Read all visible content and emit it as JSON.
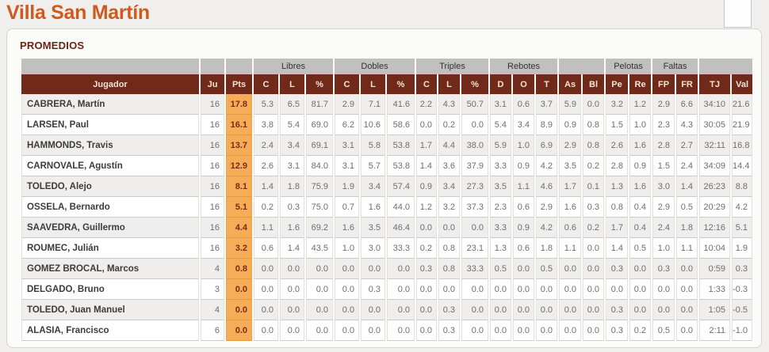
{
  "page": {
    "title": "Villa San Martín"
  },
  "panel": {
    "heading": "PROMEDIOS"
  },
  "colors": {
    "title_orange": "#cf5a1e",
    "heading_maroon": "#6b2415",
    "header_bg": "#71291a",
    "group_header_bg": "#c2c0be",
    "pts_highlight_bg": "#f7ad57",
    "row_stripe": "#efeeec"
  },
  "table": {
    "groups": [
      {
        "label": "",
        "span": 1
      },
      {
        "label": "",
        "span": 1
      },
      {
        "label": "",
        "span": 1
      },
      {
        "label": "Libres",
        "span": 3
      },
      {
        "label": "Dobles",
        "span": 3
      },
      {
        "label": "Triples",
        "span": 3
      },
      {
        "label": "Rebotes",
        "span": 3
      },
      {
        "label": "",
        "span": 2
      },
      {
        "label": "Pelotas",
        "span": 2
      },
      {
        "label": "Faltas",
        "span": 2
      },
      {
        "label": "",
        "span": 2
      }
    ],
    "columns": [
      "Jugador",
      "Ju",
      "Pts",
      "C",
      "L",
      "%",
      "C",
      "L",
      "%",
      "C",
      "L",
      "%",
      "D",
      "O",
      "T",
      "As",
      "Bl",
      "Pe",
      "Re",
      "FP",
      "FR",
      "TJ",
      "Val"
    ],
    "rows": [
      {
        "name": "CABRERA, Martín",
        "values": [
          "16",
          "17.8",
          "5.3",
          "6.5",
          "81.7",
          "2.9",
          "7.1",
          "41.6",
          "2.2",
          "4.3",
          "50.7",
          "3.1",
          "0.6",
          "3.7",
          "5.9",
          "0.0",
          "3.2",
          "1.2",
          "2.9",
          "6.6",
          "34:10",
          "21.6"
        ]
      },
      {
        "name": "LARSEN, Paul",
        "values": [
          "16",
          "16.1",
          "3.8",
          "5.4",
          "69.0",
          "6.2",
          "10.6",
          "58.6",
          "0.0",
          "0.2",
          "0.0",
          "5.4",
          "3.4",
          "8.9",
          "0.9",
          "0.8",
          "1.5",
          "1.0",
          "2.3",
          "4.3",
          "30:05",
          "21.9"
        ]
      },
      {
        "name": "HAMMONDS, Travis",
        "values": [
          "16",
          "13.7",
          "2.4",
          "3.4",
          "69.1",
          "3.1",
          "5.8",
          "53.8",
          "1.7",
          "4.4",
          "38.0",
          "5.9",
          "1.0",
          "6.9",
          "2.9",
          "0.8",
          "2.6",
          "1.6",
          "2.8",
          "2.7",
          "32:11",
          "16.8"
        ]
      },
      {
        "name": "CARNOVALE, Agustín",
        "values": [
          "16",
          "12.9",
          "2.6",
          "3.1",
          "84.0",
          "3.1",
          "5.7",
          "53.8",
          "1.4",
          "3.6",
          "37.9",
          "3.3",
          "0.9",
          "4.2",
          "3.5",
          "0.2",
          "2.8",
          "0.9",
          "1.5",
          "2.4",
          "34:09",
          "14.4"
        ]
      },
      {
        "name": "TOLEDO, Alejo",
        "values": [
          "16",
          "8.1",
          "1.4",
          "1.8",
          "75.9",
          "1.9",
          "3.4",
          "57.4",
          "0.9",
          "3.4",
          "27.3",
          "3.5",
          "1.1",
          "4.6",
          "1.7",
          "0.1",
          "1.3",
          "1.6",
          "3.0",
          "1.4",
          "26:23",
          "8.8"
        ]
      },
      {
        "name": "OSSELA, Bernardo",
        "values": [
          "16",
          "5.1",
          "0.2",
          "0.3",
          "75.0",
          "0.7",
          "1.6",
          "44.0",
          "1.2",
          "3.2",
          "37.3",
          "2.3",
          "0.6",
          "2.9",
          "1.6",
          "0.3",
          "0.8",
          "0.4",
          "2.9",
          "0.5",
          "20:29",
          "4.2"
        ]
      },
      {
        "name": "SAAVEDRA, Guillermo",
        "values": [
          "16",
          "4.4",
          "1.1",
          "1.6",
          "69.2",
          "1.6",
          "3.5",
          "46.4",
          "0.0",
          "0.0",
          "0.0",
          "3.3",
          "0.9",
          "4.2",
          "0.6",
          "0.2",
          "1.7",
          "0.4",
          "2.4",
          "1.8",
          "12:16",
          "5.1"
        ]
      },
      {
        "name": "ROUMEC, Julián",
        "values": [
          "16",
          "3.2",
          "0.6",
          "1.4",
          "43.5",
          "1.0",
          "3.0",
          "33.3",
          "0.2",
          "0.8",
          "23.1",
          "1.3",
          "0.6",
          "1.8",
          "1.1",
          "0.0",
          "1.4",
          "0.5",
          "1.0",
          "1.1",
          "10:04",
          "1.9"
        ]
      },
      {
        "name": "GOMEZ BROCAL, Marcos",
        "values": [
          "4",
          "0.8",
          "0.0",
          "0.0",
          "0.0",
          "0.0",
          "0.0",
          "0.0",
          "0.3",
          "0.8",
          "33.3",
          "0.5",
          "0.0",
          "0.5",
          "0.0",
          "0.0",
          "0.3",
          "0.0",
          "0.3",
          "0.0",
          "0:59",
          "0.3"
        ]
      },
      {
        "name": "DELGADO, Bruno",
        "values": [
          "3",
          "0.0",
          "0.0",
          "0.0",
          "0.0",
          "0.0",
          "0.3",
          "0.0",
          "0.0",
          "0.0",
          "0.0",
          "0.0",
          "0.0",
          "0.0",
          "0.0",
          "0.0",
          "0.0",
          "0.0",
          "0.0",
          "0.0",
          "1:33",
          "-0.3"
        ]
      },
      {
        "name": "TOLEDO, Juan Manuel",
        "values": [
          "4",
          "0.0",
          "0.0",
          "0.0",
          "0.0",
          "0.0",
          "0.0",
          "0.0",
          "0.0",
          "0.3",
          "0.0",
          "0.0",
          "0.0",
          "0.0",
          "0.0",
          "0.0",
          "0.3",
          "0.0",
          "0.0",
          "0.0",
          "1:05",
          "-0.5"
        ]
      },
      {
        "name": "ALASIA, Francisco",
        "values": [
          "6",
          "0.0",
          "0.0",
          "0.0",
          "0.0",
          "0.0",
          "0.0",
          "0.0",
          "0.0",
          "0.3",
          "0.0",
          "0.0",
          "0.0",
          "0.0",
          "0.0",
          "0.0",
          "0.3",
          "0.2",
          "0.5",
          "0.0",
          "2:11",
          "-1.0"
        ]
      }
    ]
  }
}
